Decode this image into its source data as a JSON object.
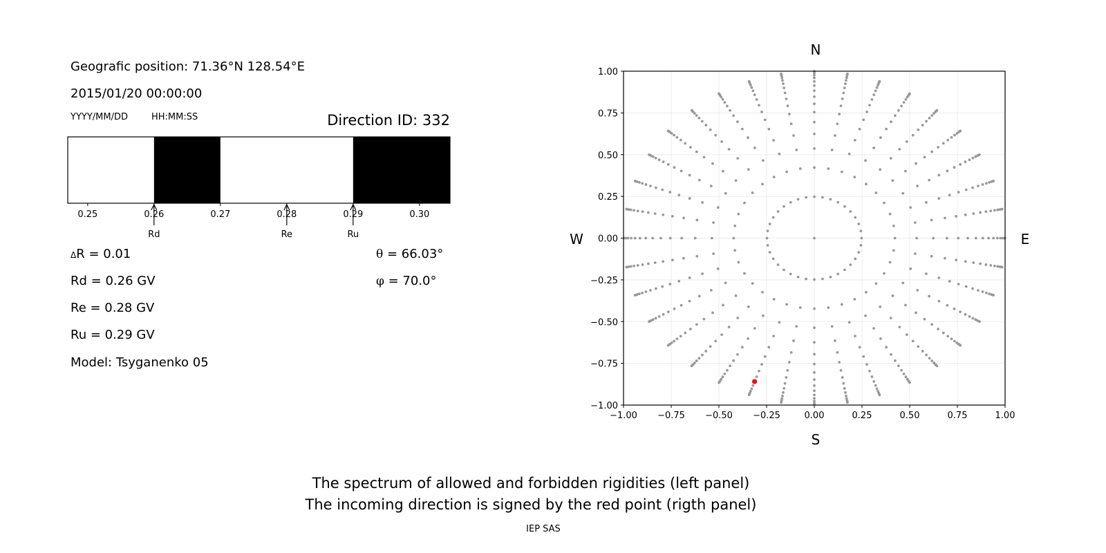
{
  "info": {
    "position": "Geografic position: 71.36°N 128.54°E",
    "datetime": "2015/01/20 00:00:00",
    "date_format": "YYYY/MM/DD",
    "time_format": "HH:MM:SS",
    "direction_id": "Direction ID: 332",
    "delta_r_symbol": "Δ",
    "delta_r": "R = 0.01",
    "rd": "Rd = 0.26 GV",
    "re": "Re = 0.28 GV",
    "ru": "Ru = 0.29 GV",
    "model": "Model: Tsyganenko 05",
    "theta_symbol": "θ",
    "theta": " = 66.03°",
    "phi_symbol": "φ",
    "phi": " = 70.0°"
  },
  "caption": {
    "line1": "The spectrum of allowed and forbidden rigidities (left panel)",
    "line2": "The incoming direction is signed by the red point (rigth panel)",
    "credit": "IEP SAS"
  },
  "compass": {
    "n": "N",
    "s": "S",
    "w": "W",
    "e": "E"
  },
  "chart_data": [
    {
      "type": "bar",
      "xlim": [
        0.247,
        0.3046
      ],
      "xticks": [
        "0.25",
        "0.26",
        "0.27",
        "0.28",
        "0.29",
        "0.30"
      ],
      "xtick_values": [
        0.25,
        0.26,
        0.27,
        0.28,
        0.29,
        0.3
      ],
      "black_intervals": [
        [
          0.26,
          0.27
        ],
        [
          0.29,
          0.3046
        ]
      ],
      "markers": [
        {
          "label": "Rd",
          "value": 0.26
        },
        {
          "label": "Re",
          "value": 0.28
        },
        {
          "label": "Ru",
          "value": 0.29
        }
      ],
      "colors": {
        "forbidden": "#000000",
        "allowed": "#ffffff"
      }
    },
    {
      "type": "scatter",
      "xlim": [
        -1.0,
        1.0
      ],
      "ylim": [
        -1.0,
        1.0
      ],
      "grid": true,
      "xticks": [
        "−1.00",
        "−0.75",
        "−0.50",
        "−0.25",
        "0.00",
        "0.25",
        "0.50",
        "0.75",
        "1.00"
      ],
      "yticks": [
        "−1.00",
        "−0.75",
        "−0.50",
        "−0.25",
        "0.00",
        "0.25",
        "0.50",
        "0.75",
        "1.00"
      ],
      "tick_values": [
        -1,
        -0.75,
        -0.5,
        -0.25,
        0,
        0.25,
        0.5,
        0.75,
        1
      ],
      "grid_points": {
        "center": [
          0,
          0
        ],
        "zenith_deg": [
          14.36,
          25.0,
          32.46,
          38.62,
          44.05,
          48.99,
          53.58,
          57.91,
          62.05,
          66.03,
          69.89,
          73.67,
          77.36,
          81.01,
          84.62,
          88.21
        ],
        "azimuth_step_deg": 10,
        "color": "#999999"
      },
      "highlight": {
        "x": -0.313,
        "y": -0.859,
        "color": "#ff0000"
      }
    }
  ]
}
